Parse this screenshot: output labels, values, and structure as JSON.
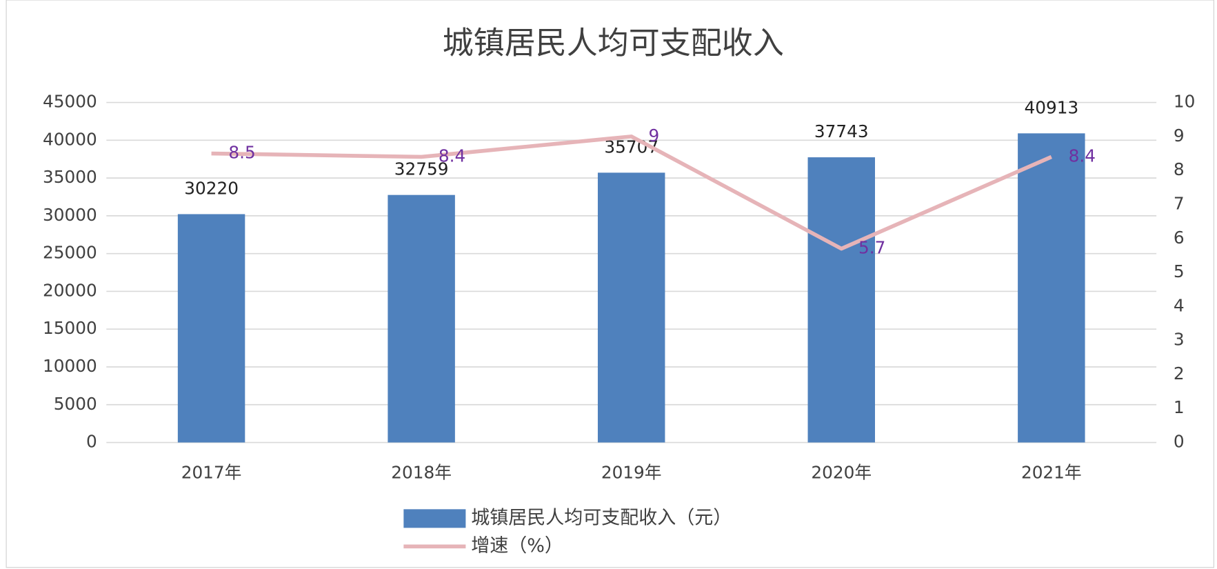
{
  "chart_data": {
    "type": "bar",
    "title": "城镇居民人均可支配收入",
    "categories": [
      "2017年",
      "2018年",
      "2019年",
      "2020年",
      "2021年"
    ],
    "series": [
      {
        "name": "城镇居民人均可支配收入（元）",
        "type": "bar",
        "color": "#4f81bd",
        "values": [
          30220,
          32759,
          35707,
          37743,
          40913
        ]
      },
      {
        "name": "增速（%）",
        "type": "line",
        "axis": "y2",
        "color": "#e6b4b8",
        "label_color": "#7030a0",
        "values": [
          8.5,
          8.4,
          9,
          5.7,
          8.4
        ]
      }
    ],
    "ylim": [
      0,
      45000
    ],
    "yticks": [
      0,
      5000,
      10000,
      15000,
      20000,
      25000,
      30000,
      35000,
      40000,
      45000
    ],
    "y2lim": [
      0,
      10
    ],
    "y2ticks": [
      0,
      1,
      2,
      3,
      4,
      5,
      6,
      7,
      8,
      9,
      10
    ],
    "grid": true,
    "legend": "bottom"
  }
}
